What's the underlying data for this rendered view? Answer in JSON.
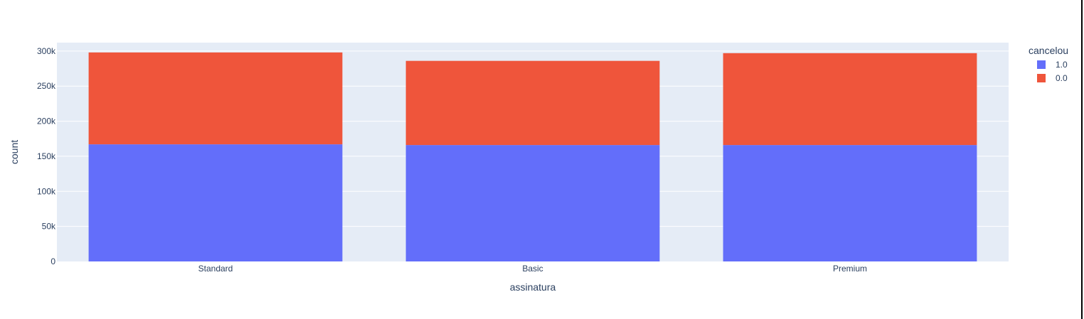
{
  "chart_data": {
    "type": "bar",
    "barmode": "stack",
    "categories": [
      "Standard",
      "Basic",
      "Premium"
    ],
    "series": [
      {
        "name": "1.0",
        "values": [
          167000,
          166000,
          166000
        ],
        "color": "#636efa"
      },
      {
        "name": "0.0",
        "values": [
          131000,
          120000,
          131000
        ],
        "color": "#ef553b"
      }
    ],
    "xlabel": "assinatura",
    "ylabel": "count",
    "ylim": [
      0,
      312000
    ],
    "yticks": [
      0,
      50000,
      100000,
      150000,
      200000,
      250000,
      300000
    ],
    "ytick_labels": [
      "0",
      "50k",
      "100k",
      "150k",
      "200k",
      "250k",
      "300k"
    ],
    "grid": true,
    "legend": {
      "title": "cancelou",
      "position": "top-right"
    },
    "plot_bg": "#e5ecf6"
  }
}
